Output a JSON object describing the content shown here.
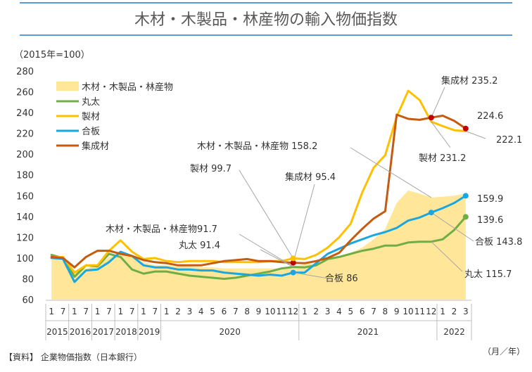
{
  "chart_data": {
    "type": "line",
    "title": "木材・木製品・林産物の輸入物価指数",
    "unit_label": "（2015年=100）",
    "xlabel": "（月／年）",
    "ylabel": "",
    "source_note": "【資料】 企業物価指数（日本銀行）",
    "ylim": [
      60,
      280
    ],
    "yticks": [
      60,
      80,
      100,
      120,
      140,
      160,
      180,
      200,
      220,
      240,
      260,
      280
    ],
    "grid": false,
    "legend_position": "top-left",
    "x": [
      "2015-01",
      "2015-07",
      "2016-01",
      "2016-07",
      "2017-01",
      "2017-07",
      "2018-01",
      "2018-07",
      "2019-01",
      "2019-07",
      "2020-01",
      "2020-02",
      "2020-03",
      "2020-04",
      "2020-05",
      "2020-06",
      "2020-07",
      "2020-08",
      "2020-09",
      "2020-10",
      "2020-11",
      "2020-12",
      "2021-01",
      "2021-02",
      "2021-03",
      "2021-04",
      "2021-05",
      "2021-06",
      "2021-07",
      "2021-08",
      "2021-09",
      "2021-10",
      "2021-11",
      "2021-12",
      "2022-01",
      "2022-02",
      "2022-03"
    ],
    "x_tick_labels": [
      "1",
      "7",
      "1",
      "7",
      "1",
      "7",
      "1",
      "7",
      "1",
      "7",
      "1",
      "2",
      "3",
      "4",
      "5",
      "6",
      "7",
      "8",
      "9",
      "10",
      "11",
      "12",
      "1",
      "2",
      "3",
      "4",
      "5",
      "6",
      "7",
      "8",
      "9",
      "10",
      "11",
      "12",
      "1",
      "2",
      "3"
    ],
    "year_labels": [
      {
        "label": "2015",
        "from": 0,
        "to": 1
      },
      {
        "label": "2016",
        "from": 2,
        "to": 3
      },
      {
        "label": "2017",
        "from": 4,
        "to": 5
      },
      {
        "label": "2018",
        "from": 6,
        "to": 7
      },
      {
        "label": "2019",
        "from": 8,
        "to": 9
      },
      {
        "label": "2020",
        "from": 10,
        "to": 21
      },
      {
        "label": "2021",
        "from": 22,
        "to": 33
      },
      {
        "label": "2022",
        "from": 34,
        "to": 36
      }
    ],
    "series": [
      {
        "name": "木材・木製品・林産物",
        "type": "area",
        "color": "#FFE699",
        "values": [
          99,
          97,
          88,
          90,
          93,
          101,
          104,
          102,
          96,
          93,
          93,
          92,
          92,
          91,
          91,
          90,
          90,
          90,
          90,
          90,
          90,
          91.7,
          94,
          95,
          98,
          101,
          105,
          110,
          118,
          128,
          153,
          165,
          162,
          158.2,
          159,
          160,
          162
        ]
      },
      {
        "name": "丸太",
        "type": "line",
        "color": "#70AD47",
        "values": [
          103,
          100,
          82,
          93,
          92,
          104,
          101,
          89,
          85,
          87,
          87,
          85,
          83,
          82,
          81,
          80,
          81,
          83,
          85,
          87,
          90,
          91.4,
          91,
          93,
          99,
          101,
          104,
          107,
          109,
          112,
          112,
          115,
          115.7,
          115.7,
          118,
          127,
          139.6
        ]
      },
      {
        "name": "製材",
        "type": "line",
        "color": "#FFC000",
        "values": [
          101,
          101,
          86,
          93,
          93,
          107,
          117,
          106,
          99,
          100,
          97,
          96,
          97,
          97,
          97,
          96,
          96,
          96,
          96,
          97,
          97,
          99.7,
          99,
          103,
          110,
          120,
          133,
          163,
          187,
          199,
          236,
          261,
          252,
          231.2,
          227,
          223,
          222.1
        ]
      },
      {
        "name": "合板",
        "type": "line",
        "color": "#1AA7E0",
        "values": [
          100,
          99,
          77,
          88,
          89,
          96,
          106,
          102,
          93,
          91,
          91,
          89,
          89,
          88,
          88,
          86,
          85,
          84,
          83,
          84,
          83,
          86,
          86,
          95,
          104,
          109,
          114,
          118,
          122,
          125,
          129,
          136,
          139,
          143.8,
          148,
          153,
          159.9
        ]
      },
      {
        "name": "集成材",
        "type": "line",
        "color": "#C55A11",
        "values": [
          101,
          100,
          91,
          101,
          107,
          107,
          104,
          102,
          98,
          96,
          95,
          93,
          93,
          93,
          95,
          97,
          98,
          99,
          97,
          97,
          96,
          95.4,
          95,
          97,
          100,
          105,
          117,
          128,
          138,
          145,
          238,
          234,
          233,
          235.2,
          237,
          232,
          224.6
        ]
      }
    ],
    "annotations": [
      "集成材 235.2",
      "224.6",
      "222.1",
      "製材 231.2",
      "木材・木製品・林産物 158.2",
      "製材 99.7",
      "集成材 95.4",
      "159.9",
      "139.6",
      "合板 143.8",
      "丸太 115.7",
      "木材・木製品・林産物91.7",
      "丸太 91.4",
      "合板 86"
    ]
  }
}
